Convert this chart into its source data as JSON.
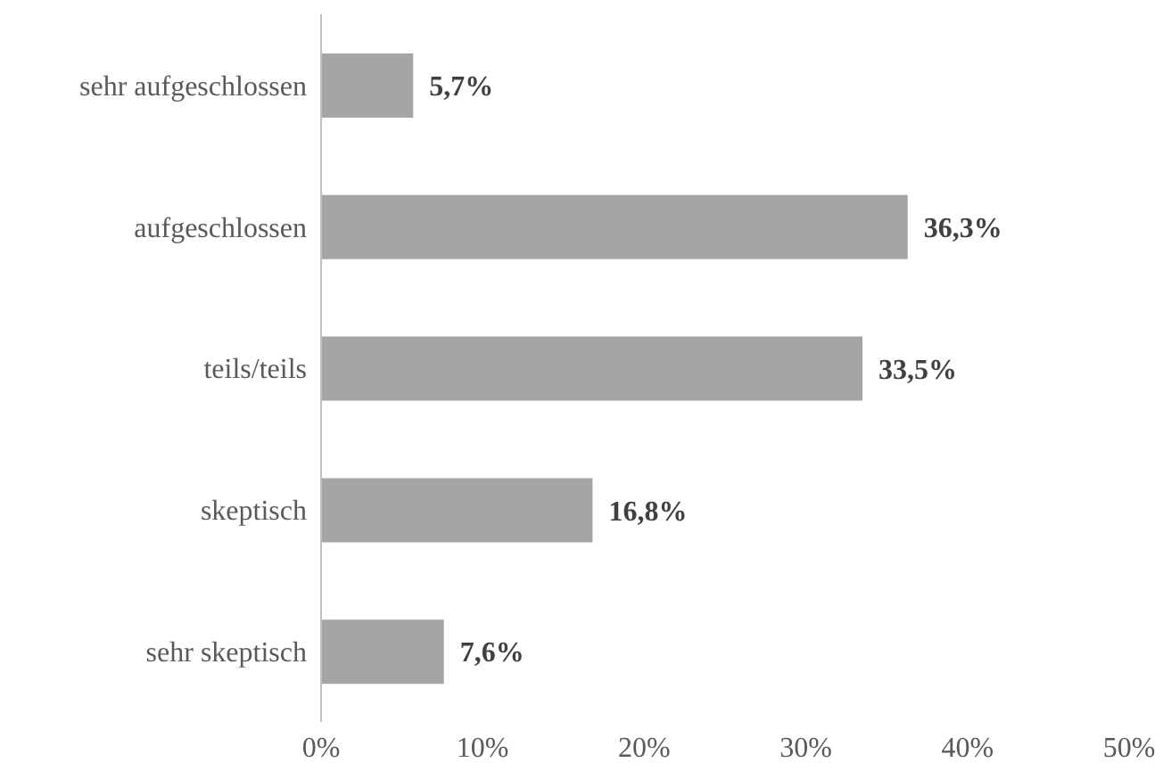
{
  "chart_data": {
    "type": "bar",
    "orientation": "horizontal",
    "categories": [
      "sehr aufgeschlossen",
      "aufgeschlossen",
      "teils/teils",
      "skeptisch",
      "sehr skeptisch"
    ],
    "values": [
      5.7,
      36.3,
      33.5,
      16.8,
      7.6
    ],
    "value_labels": [
      "5,7%",
      "36,3%",
      "33,5%",
      "16,8%",
      "7,6%"
    ],
    "color": "#a5a5a5",
    "xlim": [
      0,
      50
    ],
    "xticks": [
      {
        "value": 0,
        "label": "0%"
      },
      {
        "value": 10,
        "label": "10%"
      },
      {
        "value": 20,
        "label": "20%"
      },
      {
        "value": 30,
        "label": "30%"
      },
      {
        "value": 40,
        "label": "40%"
      },
      {
        "value": 50,
        "label": "50%"
      }
    ],
    "grid": false,
    "legend": false
  }
}
